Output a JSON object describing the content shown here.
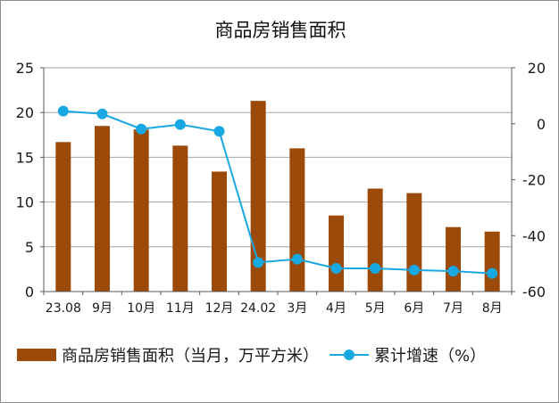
{
  "chart_data": {
    "type": "bar+line",
    "title": "商品房销售面积",
    "categories": [
      "23.08",
      "9月",
      "10月",
      "11月",
      "12月",
      "24.02",
      "3月",
      "4月",
      "5月",
      "6月",
      "7月",
      "8月"
    ],
    "series": [
      {
        "name": "商品房销售面积（当月，万平方米）",
        "type": "bar",
        "axis": "left",
        "values": [
          16.7,
          18.5,
          18.1,
          16.3,
          13.4,
          21.3,
          16.0,
          8.5,
          11.5,
          11.0,
          7.2,
          6.7
        ]
      },
      {
        "name": "累计增速（%）",
        "type": "line",
        "axis": "right",
        "values": [
          4.5,
          3.5,
          -1.9,
          -0.3,
          -2.7,
          -49.6,
          -48.4,
          -51.7,
          -51.7,
          -52.3,
          -52.7,
          -53.5
        ]
      }
    ],
    "left_axis": {
      "ylim": [
        0,
        25
      ],
      "ticks": [
        "0",
        "5",
        "10",
        "15",
        "20",
        "25"
      ]
    },
    "right_axis": {
      "ylim": [
        -60,
        20
      ],
      "ticks": [
        "-60",
        "-40",
        "-20",
        "0",
        "20"
      ]
    },
    "grid": true,
    "legend_position": "bottom",
    "colors": {
      "bar": "#9c4a09",
      "line": "#1aa8e3",
      "grid": "#a6a6a6",
      "axis": "#595959"
    }
  }
}
